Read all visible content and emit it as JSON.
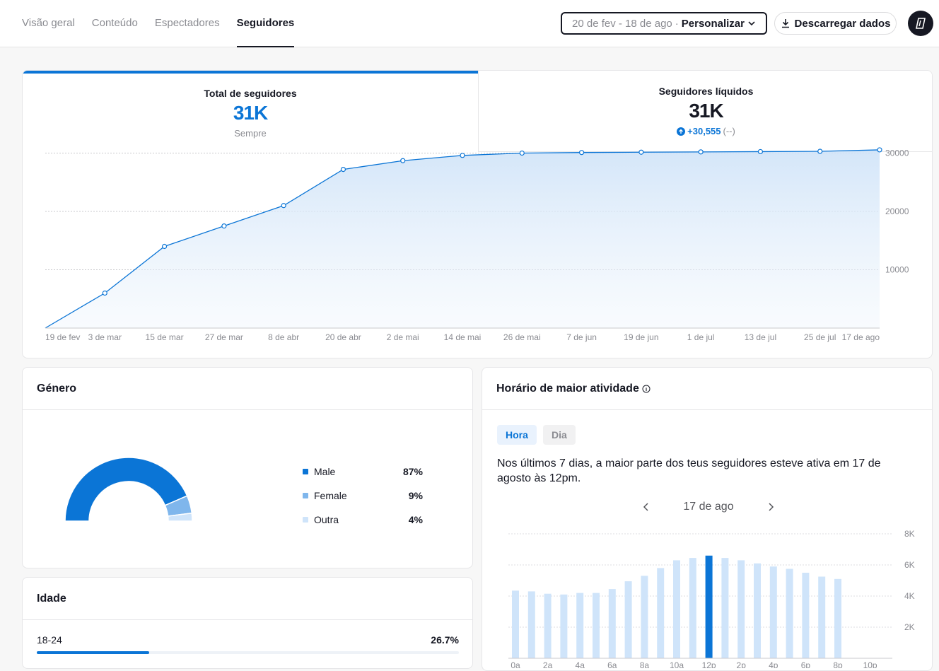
{
  "tabs": [
    {
      "label": "Visão geral"
    },
    {
      "label": "Conteúdo"
    },
    {
      "label": "Espectadores"
    },
    {
      "label": "Seguidores"
    }
  ],
  "date_picker": {
    "range": "20 de fev - 18 de ago",
    "separator": "·",
    "custom": "Personalizar"
  },
  "download": {
    "label": "Descarregar dados"
  },
  "metrics": {
    "total": {
      "title": "Total de seguidores",
      "value": "31K",
      "sub": "Sempre"
    },
    "net": {
      "title": "Seguidores líquidos",
      "value": "31K",
      "delta": "+30,555",
      "delta_note": "(--)"
    }
  },
  "colors": {
    "accent": "#0b75d6",
    "light_bar": "#cfe4fa",
    "female": "#7fb6ec",
    "other": "#cfe4fa"
  },
  "chart_data": [
    {
      "type": "area",
      "title": "",
      "x": [
        "19 de fev",
        "3 de mar",
        "15 de mar",
        "27 de mar",
        "8 de abr",
        "20 de abr",
        "2 de mai",
        "14 de mai",
        "26 de mai",
        "7 de jun",
        "19 de jun",
        "1 de jul",
        "13 de jul",
        "25 de jul",
        "17 de ago"
      ],
      "x_ticks": [
        "19 de fev",
        "3 de mar",
        "15 de mar",
        "27 de mar",
        "8 de abr",
        "20 de abr",
        "2 de mai",
        "14 de mai",
        "26 de mai",
        "7 de jun",
        "19 de jun",
        "1 de jul",
        "13 de jul",
        "25 de jul",
        "17 de ago"
      ],
      "series": [
        {
          "values": [
            0,
            6000,
            14000,
            17500,
            21000,
            27200,
            28700,
            29600,
            30000,
            30100,
            30150,
            30200,
            30250,
            30300,
            30555
          ]
        }
      ],
      "y_ticks": [
        "10000",
        "20000",
        "30000"
      ],
      "ylim": [
        0,
        32000
      ],
      "grid": true
    },
    {
      "type": "pie",
      "title": "Género",
      "categories": [
        "Male",
        "Female",
        "Outra"
      ],
      "values": [
        87,
        9,
        4
      ],
      "labels": [
        "87%",
        "9%",
        "4%"
      ]
    },
    {
      "type": "bar",
      "title": "Horário de maior atividade",
      "categories": [
        "0a",
        "1a",
        "2a",
        "3a",
        "4a",
        "5a",
        "6a",
        "7a",
        "8a",
        "9a",
        "10a",
        "11a",
        "12p",
        "1p",
        "2p",
        "3p",
        "4p",
        "5p",
        "6p",
        "7p",
        "8p",
        "9p",
        "10p",
        "11p"
      ],
      "x_ticks": [
        "0a",
        "2a",
        "4a",
        "6a",
        "8a",
        "10a",
        "12p",
        "2p",
        "4p",
        "6p",
        "8p",
        "10p"
      ],
      "values": [
        4350,
        4300,
        4150,
        4100,
        4200,
        4200,
        4450,
        4950,
        5300,
        5800,
        6300,
        6450,
        6600,
        6450,
        6300,
        6100,
        5900,
        5750,
        5500,
        5250,
        5100,
        0,
        0,
        0
      ],
      "highlight": "12p",
      "y_ticks": [
        "2K",
        "4K",
        "6K",
        "8K"
      ],
      "ylim": [
        0,
        8000
      ]
    }
  ],
  "gender": {
    "title": "Género",
    "items": [
      {
        "label": "Male",
        "value": "87%"
      },
      {
        "label": "Female",
        "value": "9%"
      },
      {
        "label": "Outra",
        "value": "4%"
      }
    ]
  },
  "age": {
    "title": "Idade",
    "rows": [
      {
        "label": "18-24",
        "value": "26.7%",
        "pct": 26.7
      }
    ]
  },
  "activity": {
    "title": "Horário de maior atividade",
    "toggle_on": "Hora",
    "toggle_off": "Dia",
    "text": "Nos últimos 7 dias, a maior parte dos teus seguidores esteve ativa em 17 de agosto às 12pm.",
    "day": "17 de ago"
  }
}
